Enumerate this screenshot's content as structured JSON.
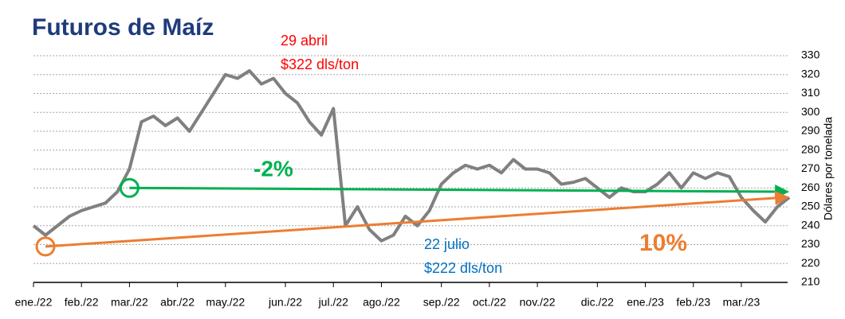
{
  "chart_data": {
    "type": "line",
    "title": "Futuros de Maíz",
    "y_axis_label": "Dólares por tonelada",
    "categories": [
      "ene./22",
      null,
      null,
      null,
      "feb./22",
      null,
      null,
      null,
      "mar./22",
      null,
      null,
      null,
      "abr./22",
      null,
      null,
      null,
      "may./22",
      null,
      null,
      null,
      null,
      "jun./22",
      null,
      null,
      null,
      "jul./22",
      null,
      null,
      null,
      "ago./22",
      null,
      null,
      null,
      null,
      "sep./22",
      null,
      null,
      null,
      "oct./22",
      null,
      null,
      null,
      "nov./22",
      null,
      null,
      null,
      null,
      "dic./22",
      null,
      null,
      null,
      "ene./23",
      null,
      null,
      null,
      "feb./23",
      null,
      null,
      null,
      "mar./23",
      null,
      null,
      null,
      null
    ],
    "series": [
      {
        "name": "Futuros de Maíz",
        "color": "#808080",
        "values": [
          240,
          235,
          240,
          245,
          248,
          250,
          252,
          258,
          270,
          295,
          298,
          293,
          297,
          290,
          300,
          310,
          320,
          318,
          322,
          315,
          318,
          310,
          305,
          295,
          288,
          302,
          240,
          250,
          238,
          232,
          235,
          245,
          240,
          248,
          262,
          268,
          272,
          270,
          272,
          268,
          275,
          270,
          270,
          268,
          262,
          263,
          265,
          260,
          255,
          260,
          258,
          258,
          262,
          268,
          260,
          268,
          265,
          268,
          266,
          255,
          248,
          242,
          250,
          255
        ]
      }
    ],
    "ylim": [
      210,
      330
    ],
    "yticks": [
      210,
      220,
      230,
      240,
      250,
      260,
      270,
      280,
      290,
      300,
      310,
      320,
      330
    ],
    "grid": true,
    "arrows": [
      {
        "color": "#00b050",
        "x": [
          8,
          63
        ],
        "values": [
          260,
          258
        ]
      },
      {
        "color": "#ed7d31",
        "x": [
          1,
          63
        ],
        "values": [
          229,
          255
        ]
      }
    ],
    "annotations": [
      {
        "lines": [
          "29 abril",
          "$322 dls/ton"
        ],
        "color": "#ff0000"
      },
      {
        "lines": [
          "22 julio",
          "$222 dls/ton"
        ],
        "color": "#0070c0"
      },
      {
        "lines": [
          "-2%"
        ],
        "color": "#00b050"
      },
      {
        "lines": [
          "10%"
        ],
        "color": "#ed7d31"
      }
    ]
  }
}
